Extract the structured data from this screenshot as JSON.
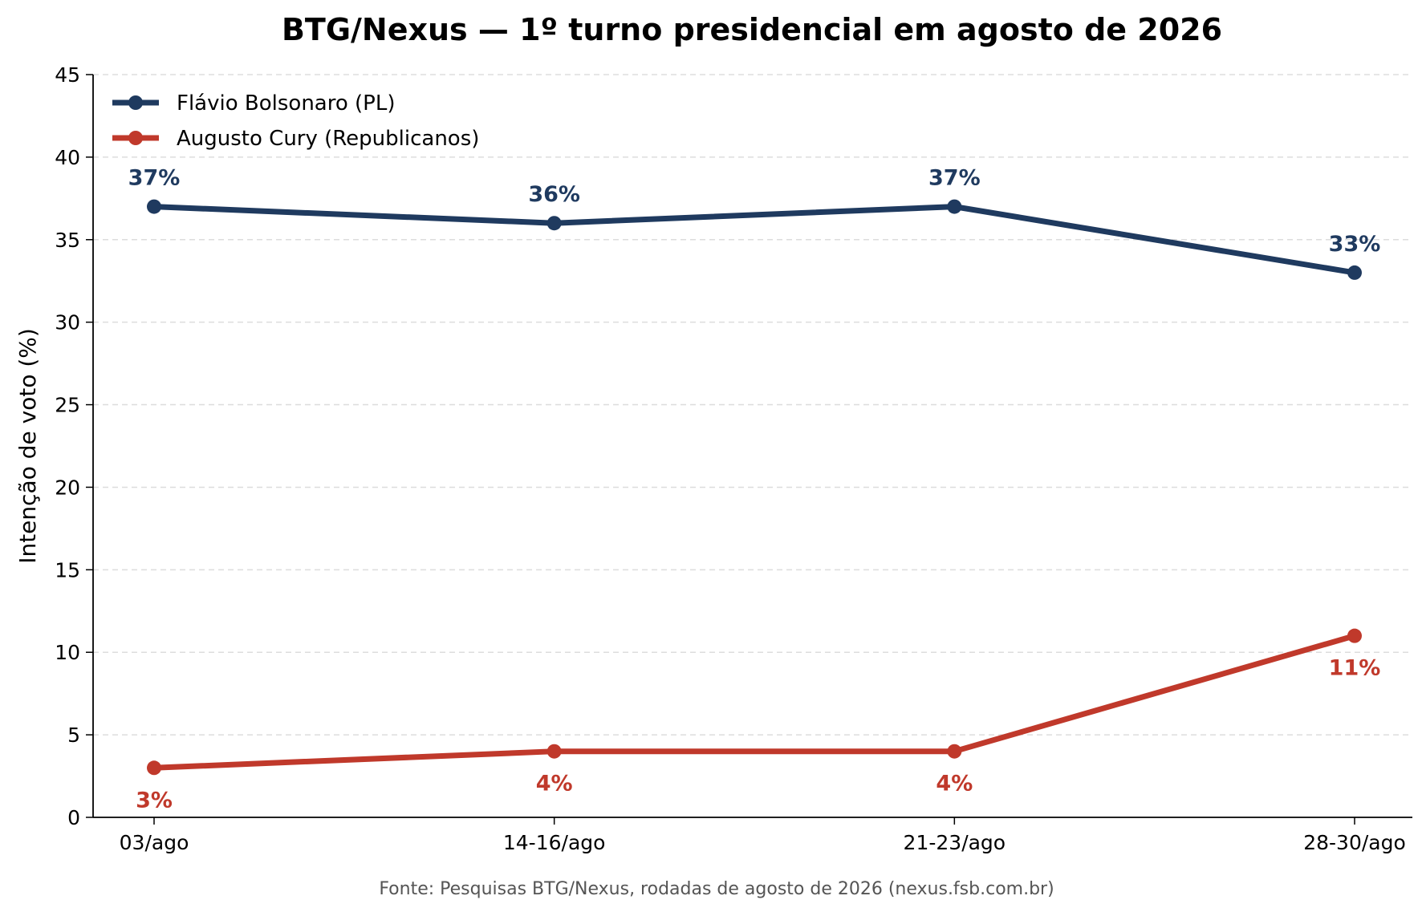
{
  "chart_data": {
    "type": "line",
    "title": "BTG/Nexus — 1º turno presidencial em agosto de 2026",
    "xlabel": "",
    "ylabel": "Intenção de voto (%)",
    "categories": [
      "03/ago",
      "14-16/ago",
      "21-23/ago",
      "28-30/ago"
    ],
    "ylim": [
      0,
      45
    ],
    "yticks": [
      "0",
      "5",
      "10",
      "15",
      "20",
      "25",
      "30",
      "35",
      "40",
      "45"
    ],
    "grid": "horizontal dashed",
    "legend_position": "top-left",
    "series": [
      {
        "name": "Flávio Bolsonaro (PL)",
        "values": [
          37,
          36,
          37,
          33
        ],
        "labels": [
          "37%",
          "36%",
          "37%",
          "33%"
        ],
        "label_position": "above",
        "color": "#1f3a5f"
      },
      {
        "name": "Augusto Cury (Republicanos)",
        "values": [
          3,
          4,
          4,
          11
        ],
        "labels": [
          "3%",
          "4%",
          "4%",
          "11%"
        ],
        "label_position": "below",
        "color": "#c0392b"
      }
    ],
    "source": "Fonte: Pesquisas BTG/Nexus, rodadas de agosto de 2026 (nexus.fsb.com.br)"
  }
}
